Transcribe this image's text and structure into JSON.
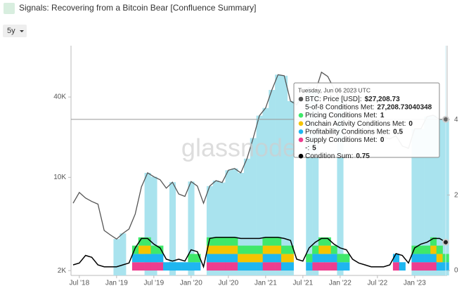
{
  "header": {
    "title": "Signals: Recovering from a Bitcoin Bear [Confluence Summary]",
    "range": "5y"
  },
  "chart_data": {
    "type": "line",
    "log_scale": true,
    "watermark": "glassnode",
    "x": [
      "Jun '18",
      "Jul '18",
      "Aug '18",
      "Sep '18",
      "Oct '18",
      "Nov '18",
      "Dec '18",
      "Jan '19",
      "Feb '19",
      "Mar '19",
      "Apr '19",
      "May '19",
      "Jun '19",
      "Jul '19",
      "Aug '19",
      "Sep '19",
      "Oct '19",
      "Nov '19",
      "Dec '19",
      "Jan '20",
      "Feb '20",
      "Mar '20",
      "Apr '20",
      "May '20",
      "Jun '20",
      "Jul '20",
      "Aug '20",
      "Sep '20",
      "Oct '20",
      "Nov '20",
      "Dec '20",
      "Jan '21",
      "Feb '21",
      "Mar '21",
      "Apr '21",
      "May '21",
      "Jun '21",
      "Jul '21",
      "Aug '21",
      "Sep '21",
      "Oct '21",
      "Nov '21",
      "Dec '21",
      "Jan '22",
      "Feb '22",
      "Mar '22",
      "Apr '22",
      "May '22",
      "Jun '22",
      "Jul '22",
      "Aug '22",
      "Sep '22",
      "Oct '22",
      "Nov '22",
      "Dec '22",
      "Jan '23",
      "Feb '23",
      "Mar '23",
      "Apr '23",
      "May '23",
      "Jun '23"
    ],
    "xticks": [
      "Jul '18",
      "Jan '19",
      "Jul '19",
      "Jan '20",
      "Jul '20",
      "Jan '21",
      "Jul '21",
      "Jan '22",
      "Jul '22",
      "Jan '23"
    ],
    "ylim": [
      1840,
      97000
    ],
    "yticks": [
      {
        "value": 2000,
        "label": "2K"
      },
      {
        "value": 10000,
        "label": "10K"
      },
      {
        "value": 40000,
        "label": "40K"
      }
    ],
    "y2lim": [
      -0.13,
      5.96
    ],
    "y2ticks": [
      0,
      2,
      4
    ],
    "series": [
      {
        "role": "price",
        "color": "#555555",
        "values": [
          6400,
          7700,
          7000,
          6600,
          6300,
          4000,
          3700,
          3450,
          3800,
          4100,
          5300,
          8500,
          10800,
          10100,
          9600,
          8300,
          9200,
          7500,
          7200,
          9300,
          8600,
          6400,
          8600,
          9450,
          9150,
          11300,
          11650,
          10800,
          13800,
          19700,
          29000,
          33100,
          45200,
          58800,
          57700,
          37300,
          35000,
          41500,
          47100,
          43800,
          61300,
          57000,
          46300,
          38500,
          43200,
          45500,
          37700,
          31800,
          19800,
          23300,
          20000,
          19400,
          20500,
          17200,
          16500,
          23100,
          23100,
          28500,
          29200,
          27200,
          27208.73
        ]
      },
      {
        "role": "columns",
        "color": "#a9e3ee",
        "values": [
          null,
          null,
          null,
          null,
          null,
          null,
          null,
          3450,
          3800,
          null,
          null,
          null,
          10800,
          10100,
          null,
          null,
          9200,
          null,
          null,
          9300,
          null,
          null,
          8600,
          9450,
          9150,
          11300,
          11650,
          10800,
          13800,
          19700,
          29000,
          33100,
          45200,
          58800,
          57700,
          37300,
          null,
          null,
          47100,
          43800,
          null,
          null,
          null,
          38500,
          null,
          null,
          null,
          null,
          null,
          null,
          null,
          null,
          null,
          null,
          null,
          23100,
          23100,
          28500,
          29200,
          27200,
          27208.73
        ]
      },
      {
        "role": "stack",
        "axis": "y2",
        "color": "#ee3d8f",
        "values": [
          0,
          0,
          0,
          0,
          0,
          0,
          0,
          0,
          0,
          0,
          0.22,
          0.22,
          0.22,
          0.22,
          0.22,
          0,
          0,
          0,
          0,
          0,
          0,
          0,
          0.22,
          0.22,
          0.22,
          0.22,
          0.22,
          0,
          0,
          0,
          0,
          0.22,
          0.22,
          0.22,
          0,
          0,
          0,
          0,
          0,
          0.22,
          0.22,
          0.22,
          0.22,
          0,
          0,
          0,
          0,
          0,
          0,
          0,
          0,
          0,
          0.22,
          0,
          0,
          0.22,
          0.22,
          0.22,
          0.22,
          0,
          0
        ]
      },
      {
        "role": "stack",
        "axis": "y2",
        "color": "#1fb6f0",
        "values": [
          0,
          0,
          0,
          0,
          0,
          0,
          0,
          0,
          0,
          0,
          0.22,
          0.22,
          0.22,
          0.22,
          0.22,
          0.22,
          0.22,
          0.22,
          0.22,
          0.22,
          0.22,
          0,
          0.22,
          0.22,
          0.22,
          0.22,
          0.22,
          0.22,
          0.22,
          0.22,
          0.22,
          0.22,
          0.22,
          0.22,
          0.22,
          0.22,
          0,
          0,
          0.22,
          0.22,
          0.22,
          0.22,
          0.22,
          0.22,
          0.22,
          0,
          0,
          0,
          0,
          0,
          0,
          0,
          0.22,
          0.22,
          0,
          0.22,
          0.22,
          0.22,
          0.22,
          0.22,
          0.22
        ]
      },
      {
        "role": "stack",
        "axis": "y2",
        "color": "#f5c400",
        "values": [
          0,
          0,
          0,
          0,
          0,
          0,
          0,
          0,
          0,
          0,
          0,
          0.22,
          0.22,
          0,
          0,
          0,
          0,
          0,
          0,
          0,
          0,
          0,
          0.22,
          0.22,
          0.22,
          0.22,
          0.22,
          0.22,
          0.22,
          0.22,
          0.22,
          0.22,
          0.22,
          0.22,
          0.22,
          0.22,
          0,
          0,
          0,
          0,
          0.22,
          0.22,
          0,
          0,
          0,
          0,
          0,
          0,
          0,
          0,
          0,
          0,
          0,
          0,
          0,
          0,
          0,
          0,
          0.22,
          0.22,
          0
        ]
      },
      {
        "role": "stack",
        "axis": "y2",
        "color": "#3fe86a",
        "values": [
          0,
          0,
          0,
          0,
          0,
          0,
          0,
          0,
          0,
          0,
          0.22,
          0.22,
          0.22,
          0.22,
          0.22,
          0,
          0,
          0,
          0,
          0.22,
          0.22,
          0,
          0.22,
          0.22,
          0.22,
          0.22,
          0.22,
          0.22,
          0.22,
          0.22,
          0.22,
          0.22,
          0.22,
          0.22,
          0.22,
          0.22,
          0,
          0,
          0.22,
          0.22,
          0.22,
          0.22,
          0.22,
          0.22,
          0.22,
          0,
          0,
          0,
          0,
          0,
          0,
          0,
          0,
          0,
          0,
          0.22,
          0.22,
          0.22,
          0.22,
          0.22,
          0.22
        ]
      },
      {
        "role": "sum",
        "axis": "y2",
        "color": "#000000",
        "values": [
          0.15,
          0.2,
          0.4,
          0.35,
          0.15,
          0.1,
          0.1,
          0.1,
          0.15,
          0.2,
          0.6,
          0.85,
          0.85,
          0.7,
          0.6,
          0.3,
          0.25,
          0.3,
          0.25,
          0.55,
          0.5,
          0.1,
          0.85,
          0.88,
          0.88,
          0.88,
          0.88,
          0.85,
          0.85,
          0.85,
          0.85,
          0.88,
          0.88,
          0.88,
          0.85,
          0.8,
          0.3,
          0.25,
          0.6,
          0.75,
          0.85,
          0.85,
          0.7,
          0.6,
          0.55,
          0.3,
          0.2,
          0.15,
          0.1,
          0.1,
          0.1,
          0.15,
          0.45,
          0.4,
          0.2,
          0.6,
          0.7,
          0.75,
          0.85,
          0.85,
          0.75
        ]
      }
    ],
    "tooltip": {
      "date": "Tuesday, Jun 06 2023 UTC",
      "rows": [
        {
          "color": "#555555",
          "label": "BTC: Price [USD]:",
          "value": "$27,208.73"
        },
        {
          "color": null,
          "label": "5-of-8 Conditions Met:",
          "value": "27,208.73040348"
        },
        {
          "color": "#3fe86a",
          "label": "Pricing Conditions Met:",
          "value": "1"
        },
        {
          "color": "#f5c400",
          "label": "Onchain Activity Conditions Met:",
          "value": "0"
        },
        {
          "color": "#1fb6f0",
          "label": "Profitability Conditions Met:",
          "value": "0.5"
        },
        {
          "color": "#ee3d8f",
          "label": "Supply Conditions Met:",
          "value": "0"
        },
        {
          "color": null,
          "label": "-:",
          "value": "5"
        },
        {
          "color": "#000000",
          "label": "Condition Sum:",
          "value": "0.75"
        }
      ]
    }
  }
}
